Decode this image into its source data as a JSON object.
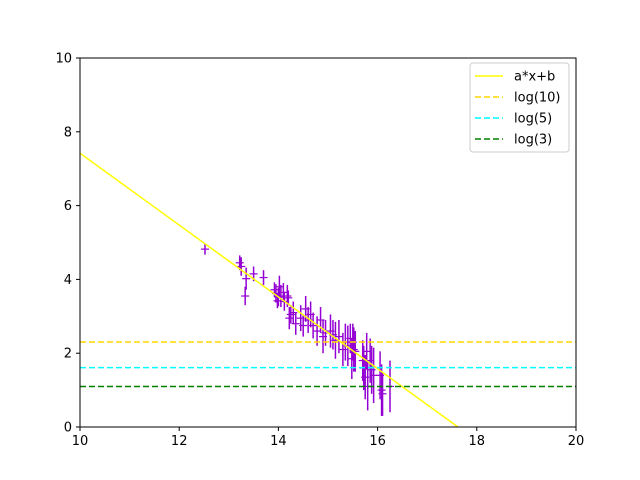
{
  "chart_data": {
    "type": "scatter",
    "title": "",
    "xlabel": "",
    "ylabel": "",
    "xlim": [
      10,
      20
    ],
    "ylim": [
      0,
      10
    ],
    "xticks": [
      10,
      12,
      14,
      16,
      18,
      20
    ],
    "yticks": [
      0,
      2,
      4,
      6,
      8,
      10
    ],
    "grid": false,
    "legend_position": "top-right",
    "points": {
      "color": "#9400d3",
      "x": [
        12.52,
        13.22,
        13.25,
        13.33,
        13.35,
        13.5,
        13.7,
        13.92,
        13.95,
        13.98,
        14.0,
        14.02,
        14.05,
        14.1,
        14.12,
        14.18,
        14.2,
        14.22,
        14.25,
        14.3,
        14.35,
        14.45,
        14.5,
        14.55,
        14.6,
        14.65,
        14.7,
        14.78,
        14.85,
        14.9,
        14.95,
        15.05,
        15.1,
        15.15,
        15.22,
        15.3,
        15.35,
        15.4,
        15.45,
        15.48,
        15.5,
        15.52,
        15.55,
        15.7,
        15.72,
        15.75,
        15.78,
        15.8,
        15.85,
        15.88,
        15.92,
        16.05,
        16.08,
        16.1,
        16.25
      ],
      "y": [
        4.82,
        4.45,
        4.35,
        3.55,
        4.02,
        4.15,
        4.05,
        3.72,
        3.62,
        3.42,
        3.52,
        3.8,
        3.55,
        3.65,
        3.4,
        3.55,
        3.5,
        2.95,
        3.05,
        3.1,
        2.8,
        2.95,
        2.75,
        3.2,
        2.9,
        3.05,
        2.75,
        2.6,
        2.9,
        2.45,
        2.55,
        2.6,
        2.5,
        2.35,
        2.45,
        2.1,
        2.3,
        2.2,
        2.4,
        1.85,
        2.3,
        2.1,
        2.05,
        1.8,
        1.6,
        1.35,
        2.05,
        1.1,
        1.8,
        1.55,
        1.4,
        1.4,
        1.0,
        0.9,
        1.1
      ],
      "yerr": [
        0.15,
        0.2,
        0.25,
        0.25,
        0.3,
        0.2,
        0.2,
        0.2,
        0.25,
        0.2,
        0.25,
        0.3,
        0.3,
        0.25,
        0.25,
        0.3,
        0.2,
        0.3,
        0.25,
        0.3,
        0.3,
        0.35,
        0.3,
        0.35,
        0.35,
        0.35,
        0.35,
        0.4,
        0.35,
        0.45,
        0.35,
        0.45,
        0.4,
        0.5,
        0.45,
        0.45,
        0.5,
        0.55,
        0.4,
        0.55,
        0.5,
        0.6,
        0.55,
        0.55,
        0.6,
        0.6,
        0.5,
        0.65,
        0.6,
        0.65,
        0.75,
        0.65,
        0.7,
        0.6,
        0.7
      ]
    },
    "series": [
      {
        "name": "a*x+b",
        "kind": "line",
        "style": "solid",
        "color": "#ffff00",
        "x": [
          10,
          17.62
        ],
        "y": [
          7.42,
          0
        ]
      },
      {
        "name": "log(10)",
        "kind": "hline",
        "style": "dashed",
        "color": "#ffd700",
        "y": 2.3026
      },
      {
        "name": "log(5)",
        "kind": "hline",
        "style": "dashed",
        "color": "#00ffff",
        "y": 1.6094
      },
      {
        "name": "log(3)",
        "kind": "hline",
        "style": "dashed",
        "color": "#008000",
        "y": 1.0986
      }
    ]
  }
}
